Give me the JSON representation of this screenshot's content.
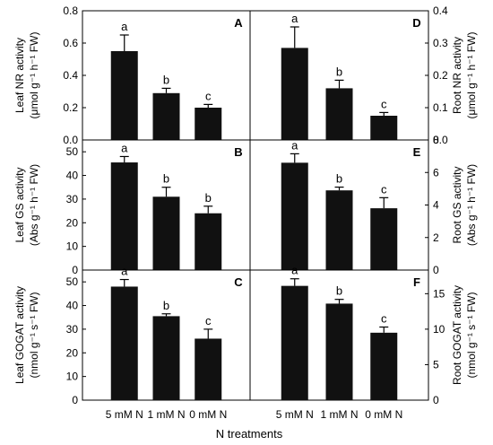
{
  "figure": {
    "xlabel": "N treatments"
  },
  "chart_data": [
    {
      "id": "A",
      "type": "bar",
      "panel_letter": "A",
      "ylabel_line1": "Leaf NR activity",
      "ylabel_line2": "(μmol g⁻¹ h⁻¹ FW)",
      "ylim": [
        0,
        0.8
      ],
      "yticks": [
        0,
        0.2,
        0.4,
        0.6,
        0.8
      ],
      "ytick_labels": [
        "0.0",
        "0.2",
        "0.4",
        "0.6",
        "0.8"
      ],
      "categories": [
        "5 mM N",
        "1 mM N",
        "0 mM N"
      ],
      "values": [
        0.55,
        0.29,
        0.2
      ],
      "errors": [
        0.1,
        0.03,
        0.02
      ],
      "letters": [
        "a",
        "b",
        "c"
      ]
    },
    {
      "id": "B",
      "type": "bar",
      "panel_letter": "B",
      "ylabel_line1": "Leaf GS activity",
      "ylabel_line2": "(Abs g⁻¹ h⁻¹ FW)",
      "ylim": [
        0,
        55
      ],
      "yticks": [
        0,
        10,
        20,
        30,
        40,
        50
      ],
      "ytick_labels": [
        "0",
        "10",
        "20",
        "30",
        "40",
        "50"
      ],
      "categories": [
        "5 mM N",
        "1 mM N",
        "0 mM N"
      ],
      "values": [
        45.5,
        31,
        24
      ],
      "errors": [
        2.5,
        4,
        3
      ],
      "letters": [
        "a",
        "b",
        "b"
      ]
    },
    {
      "id": "C",
      "type": "bar",
      "panel_letter": "C",
      "ylabel_line1": "Leaf GOGAT activity",
      "ylabel_line2": "(nmol g⁻¹ s⁻¹ FW)",
      "ylim": [
        0,
        55
      ],
      "yticks": [
        0,
        10,
        20,
        30,
        40,
        50
      ],
      "ytick_labels": [
        "0",
        "10",
        "20",
        "30",
        "40",
        "50"
      ],
      "categories": [
        "5 mM N",
        "1 mM N",
        "0 mM N"
      ],
      "values": [
        48,
        35.5,
        26
      ],
      "errors": [
        3,
        1,
        4
      ],
      "letters": [
        "a",
        "b",
        "c"
      ]
    },
    {
      "id": "D",
      "type": "bar",
      "panel_letter": "D",
      "ylabel_line1": "Root NR activity",
      "ylabel_line2": "(μmol g⁻¹ h⁻¹ FW)",
      "ylim": [
        0,
        0.4
      ],
      "yticks": [
        0,
        0.1,
        0.2,
        0.3,
        0.4
      ],
      "ytick_labels": [
        "0.0",
        "0.1",
        "0.2",
        "0.3",
        "0.4"
      ],
      "categories": [
        "5 mM N",
        "1 mM N",
        "0 mM N"
      ],
      "values": [
        0.285,
        0.16,
        0.075
      ],
      "errors": [
        0.065,
        0.025,
        0.01
      ],
      "letters": [
        "a",
        "b",
        "c"
      ]
    },
    {
      "id": "E",
      "type": "bar",
      "panel_letter": "E",
      "ylabel_line1": "Root GS activity",
      "ylabel_line2": "(Abs g⁻¹ h⁻¹ FW)",
      "ylim": [
        0,
        8
      ],
      "yticks": [
        0,
        2,
        4,
        6,
        8
      ],
      "ytick_labels": [
        "0",
        "2",
        "4",
        "6",
        "8"
      ],
      "categories": [
        "5 mM N",
        "1 mM N",
        "0 mM N"
      ],
      "values": [
        6.6,
        4.9,
        3.8
      ],
      "errors": [
        0.55,
        0.2,
        0.65
      ],
      "letters": [
        "a",
        "b",
        "c"
      ]
    },
    {
      "id": "F",
      "type": "bar",
      "panel_letter": "F",
      "ylabel_line1": "Root GOGAT activity",
      "ylabel_line2": "(nmol g⁻¹ s⁻¹ FW)",
      "ylim": [
        0,
        18.33
      ],
      "yticks": [
        0,
        5,
        10,
        15
      ],
      "ytick_labels": [
        "0",
        "5",
        "10",
        "15"
      ],
      "categories": [
        "5 mM N",
        "1 mM N",
        "0 mM N"
      ],
      "values": [
        16.1,
        13.6,
        9.5
      ],
      "errors": [
        1,
        0.6,
        0.8
      ],
      "letters": [
        "a",
        "b",
        "c"
      ]
    }
  ]
}
